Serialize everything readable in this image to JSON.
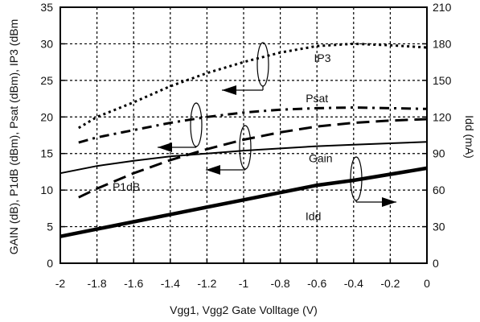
{
  "chart_data": {
    "type": "line",
    "title": "",
    "xlabel": "Vgg1, Vgg2  Gate Volltage (V)",
    "ylabel_left": "GAIN (dB),  P1dB (dBm), Psat (dBm), IP3 (dBm",
    "ylabel_right": "Idd (mA)",
    "xlim": [
      -2,
      0
    ],
    "ylim_left": [
      0,
      35
    ],
    "ylim_right": [
      0,
      210
    ],
    "x_ticks": [
      "-2",
      "-1.8",
      "-1.6",
      "-1.4",
      "-1.2",
      "-1",
      "-0.8",
      "-0.6",
      "-0.4",
      "-0.2",
      "0"
    ],
    "y_ticks_left": [
      "0",
      "5",
      "10",
      "15",
      "20",
      "25",
      "30",
      "35"
    ],
    "y_ticks_right": [
      "0",
      "30",
      "60",
      "90",
      "120",
      "150",
      "180",
      "210"
    ],
    "grid": true,
    "series": [
      {
        "name": "IP3",
        "axis": "left",
        "style": "dotted",
        "x": [
          -1.9,
          -1.8,
          -1.6,
          -1.4,
          -1.2,
          -1.0,
          -0.8,
          -0.6,
          -0.4,
          -0.2,
          0.0
        ],
        "y": [
          18.5,
          20.0,
          22.0,
          24.2,
          26.0,
          27.5,
          28.8,
          29.7,
          30.0,
          29.8,
          29.5
        ]
      },
      {
        "name": "Psat",
        "axis": "left",
        "style": "dash-dot",
        "x": [
          -1.9,
          -1.8,
          -1.6,
          -1.4,
          -1.2,
          -1.0,
          -0.8,
          -0.6,
          -0.4,
          -0.2,
          0.0
        ],
        "y": [
          16.5,
          17.2,
          18.2,
          19.2,
          20.0,
          20.6,
          21.0,
          21.2,
          21.3,
          21.2,
          21.1
        ]
      },
      {
        "name": "P1dB",
        "axis": "left",
        "style": "dashed",
        "x": [
          -1.9,
          -1.8,
          -1.6,
          -1.4,
          -1.2,
          -1.0,
          -0.8,
          -0.6,
          -0.4,
          -0.2,
          0.0
        ],
        "y": [
          9.0,
          10.2,
          12.3,
          14.1,
          15.6,
          16.9,
          17.9,
          18.7,
          19.2,
          19.5,
          19.7
        ]
      },
      {
        "name": "Gain",
        "axis": "left",
        "style": "solid",
        "x": [
          -2.0,
          -1.8,
          -1.6,
          -1.4,
          -1.2,
          -1.0,
          -0.8,
          -0.6,
          -0.4,
          -0.2,
          0.0
        ],
        "y": [
          12.3,
          13.3,
          14.0,
          14.6,
          15.0,
          15.4,
          15.7,
          16.0,
          16.2,
          16.4,
          16.6
        ]
      },
      {
        "name": "Idd",
        "axis": "right",
        "style": "thick",
        "x": [
          -2.0,
          -1.8,
          -1.6,
          -1.4,
          -1.2,
          -1.0,
          -0.8,
          -0.6,
          -0.4,
          -0.2,
          0.0
        ],
        "y": [
          22,
          28,
          34,
          40,
          46,
          52,
          58,
          64,
          68,
          73,
          78
        ]
      }
    ],
    "annotations": [
      {
        "text": "IP3",
        "x": -0.57,
        "y": 27.5
      },
      {
        "text": "Psat",
        "x": -0.6,
        "y": 22.0
      },
      {
        "text": "Gain",
        "x": -0.58,
        "y": 13.8
      },
      {
        "text": "P1dB",
        "x": -1.64,
        "y": 9.9
      },
      {
        "text": "Idd",
        "x": -0.62,
        "y": 5.9
      }
    ]
  }
}
